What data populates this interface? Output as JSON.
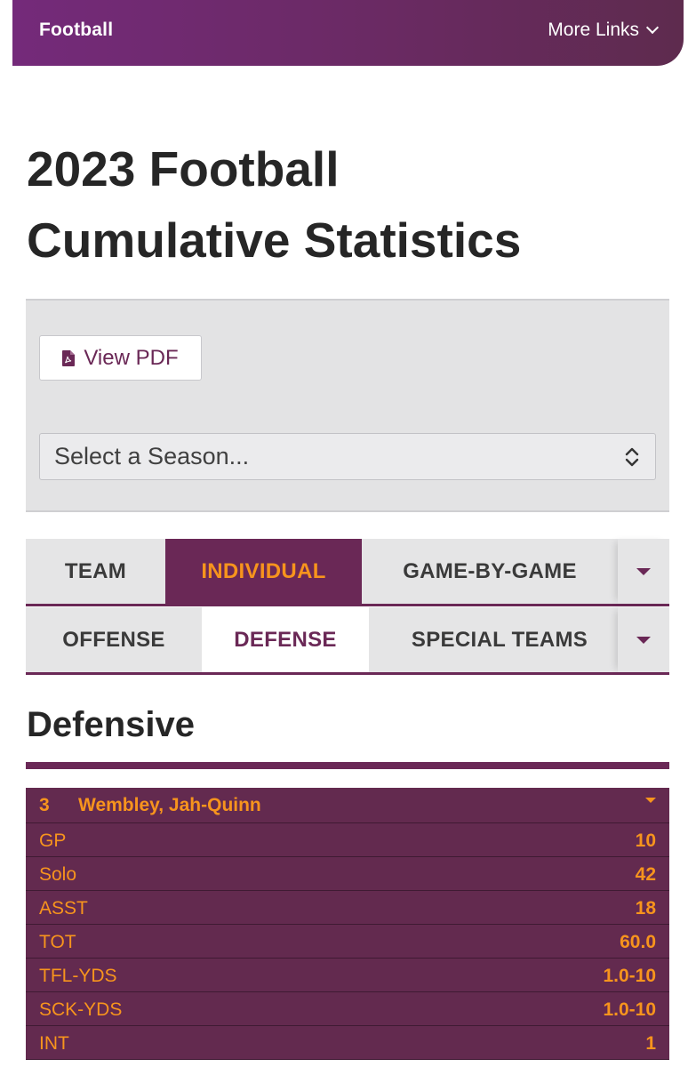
{
  "nav": {
    "brand": "Football",
    "more_links": "More Links"
  },
  "page": {
    "title_line1": "2023 Football",
    "title_line2": "Cumulative Statistics"
  },
  "filters": {
    "pdf_button": "View PDF",
    "season_select": "Select a Season..."
  },
  "main_tabs": [
    "TEAM",
    "INDIVIDUAL",
    "GAME-BY-GAME"
  ],
  "sub_tabs": [
    "OFFENSE",
    "DEFENSE",
    "SPECIAL TEAMS"
  ],
  "section": {
    "heading": "Defensive"
  },
  "player": {
    "number": "3",
    "name": "Wembley, Jah-Quinn"
  },
  "stats": [
    {
      "label": "GP",
      "value": "10"
    },
    {
      "label": "Solo",
      "value": "42"
    },
    {
      "label": "ASST",
      "value": "18"
    },
    {
      "label": "TOT",
      "value": "60.0"
    },
    {
      "label": "TFL-YDS",
      "value": "1.0-10"
    },
    {
      "label": "SCK-YDS",
      "value": "1.0-10"
    },
    {
      "label": "INT",
      "value": "1"
    }
  ],
  "colors": {
    "brand_purple": "#6a2856",
    "accent_orange": "#f7941d",
    "panel_gray": "#e3e3e4"
  }
}
